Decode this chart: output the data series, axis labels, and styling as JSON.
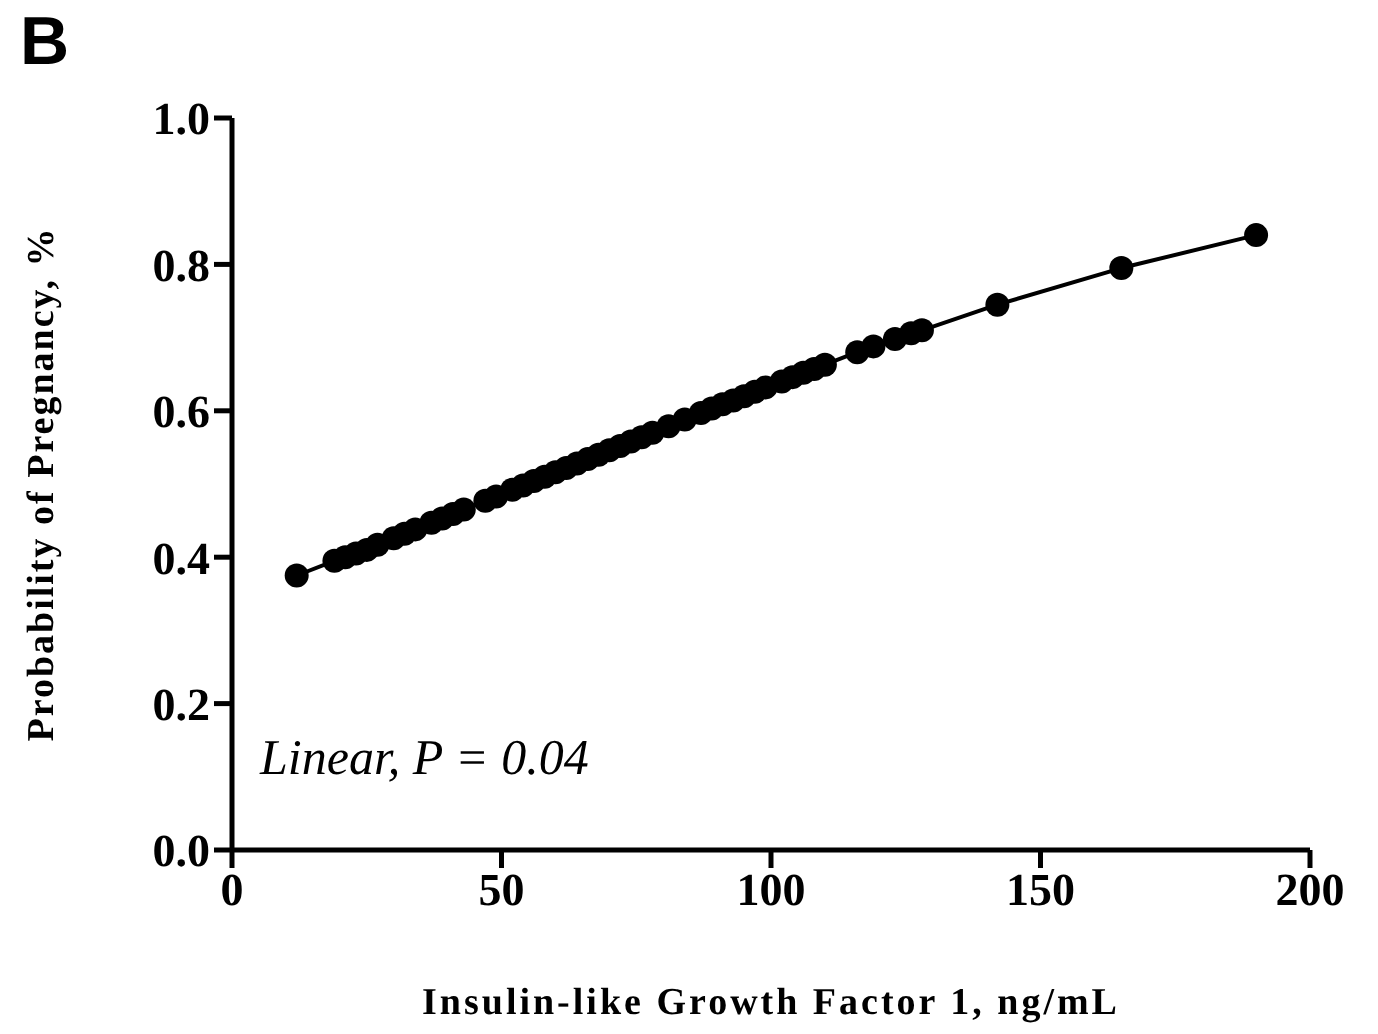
{
  "chart_data": {
    "type": "line",
    "title": "B",
    "xlabel": "Insulin-like Growth Factor 1, ng/mL",
    "ylabel": "Probability of Pregnancy, %",
    "annotations": [
      "Linear, P = 0.04"
    ],
    "x": [
      12,
      19,
      21,
      23,
      25,
      27,
      30,
      32,
      34,
      37,
      39,
      41,
      43,
      47,
      49,
      52,
      54,
      56,
      58,
      60,
      62,
      64,
      66,
      68,
      70,
      72,
      74,
      76,
      78,
      81,
      84,
      87,
      89,
      91,
      93,
      95,
      97,
      99,
      102,
      104,
      106,
      108,
      110,
      116,
      119,
      123,
      126,
      128,
      142,
      165,
      190
    ],
    "series": [
      {
        "color": "#000000",
        "values": [
          0.375,
          0.395,
          0.4,
          0.405,
          0.41,
          0.417,
          0.426,
          0.432,
          0.438,
          0.447,
          0.453,
          0.459,
          0.465,
          0.477,
          0.483,
          0.492,
          0.498,
          0.504,
          0.51,
          0.516,
          0.522,
          0.528,
          0.534,
          0.54,
          0.546,
          0.552,
          0.558,
          0.564,
          0.57,
          0.579,
          0.588,
          0.597,
          0.603,
          0.609,
          0.614,
          0.62,
          0.626,
          0.632,
          0.64,
          0.646,
          0.652,
          0.657,
          0.663,
          0.68,
          0.688,
          0.698,
          0.706,
          0.71,
          0.745,
          0.795,
          0.84
        ]
      }
    ],
    "xlim": [
      0,
      200
    ],
    "xticks": [
      0,
      50,
      100,
      150,
      200
    ],
    "ylim": [
      0,
      1
    ],
    "yticks": [
      {
        "value": 0,
        "label": "0.0"
      },
      {
        "value": 0.2,
        "label": "0.2"
      },
      {
        "value": 0.4,
        "label": "0.4"
      },
      {
        "value": 0.6,
        "label": "0.6"
      },
      {
        "value": 0.8,
        "label": "0.8"
      },
      {
        "value": 1,
        "label": "1.0"
      }
    ],
    "grid": false,
    "legend": false,
    "marker": "circle",
    "line_style": "solid"
  }
}
